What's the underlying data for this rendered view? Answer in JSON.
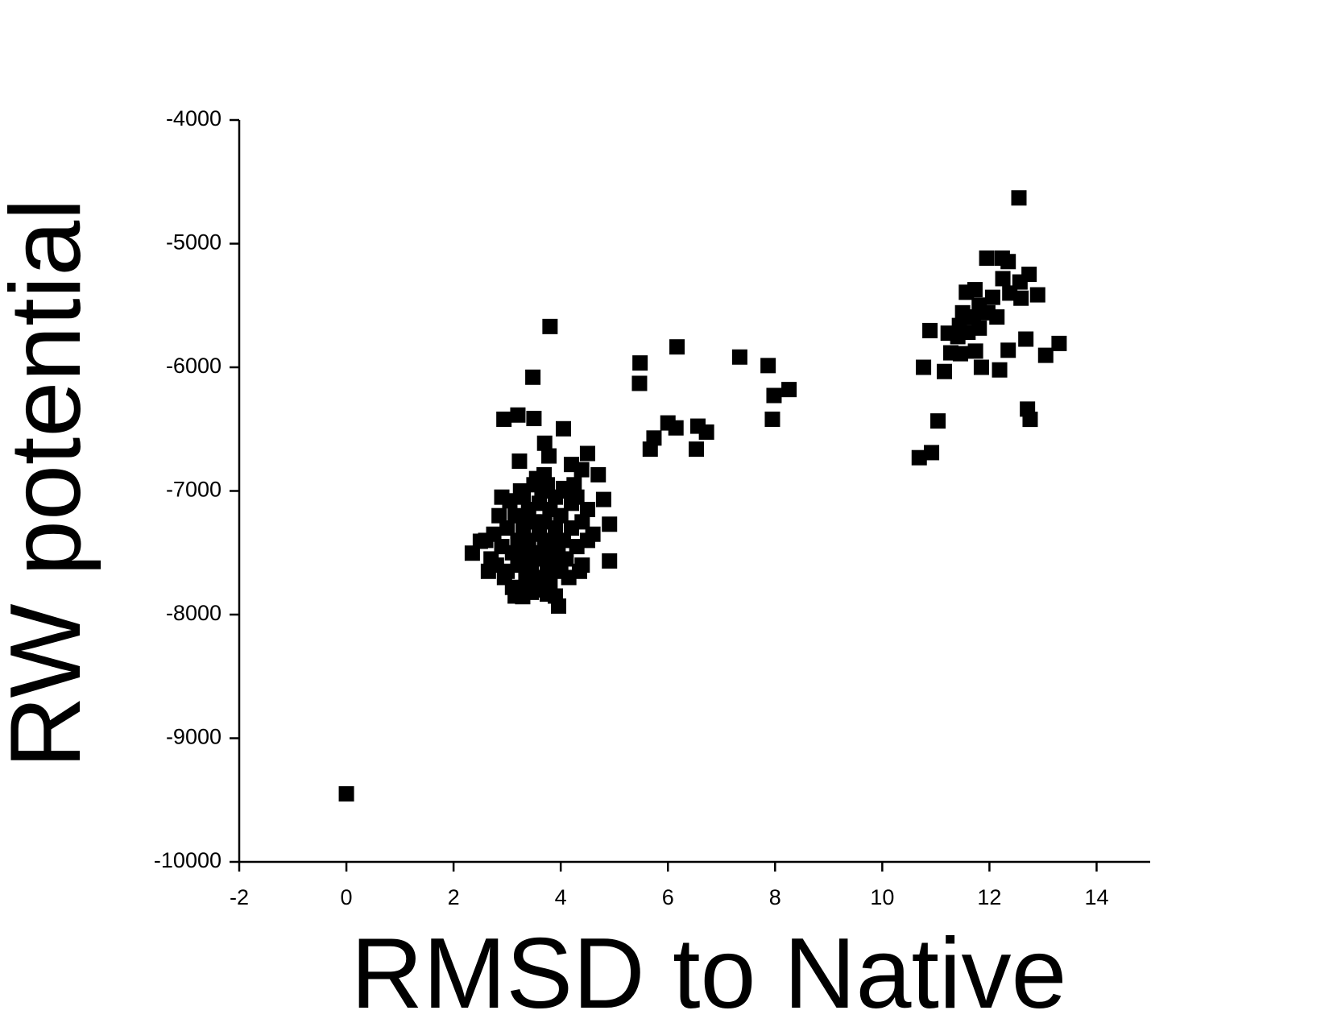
{
  "chart_data": {
    "type": "scatter",
    "xlabel": "RMSD to Native",
    "ylabel": "RW potential",
    "xlim": [
      -2,
      15
    ],
    "ylim": [
      -10000,
      -4000
    ],
    "xticks": [
      -2,
      0,
      2,
      4,
      6,
      8,
      10,
      12,
      14
    ],
    "yticks": [
      -4000,
      -5000,
      -6000,
      -7000,
      -8000,
      -9000,
      -10000
    ],
    "color": "#000000",
    "x": [
      0,
      12.55,
      3.8,
      3.48,
      5.48,
      5.47,
      6.17,
      7.34,
      7.87,
      7.98,
      8.26,
      7.95,
      6.0,
      6.15,
      6.56,
      6.72,
      5.74,
      5.67,
      6.53,
      2.94,
      3.2,
      3.5,
      4.05,
      3.7,
      3.78,
      3.23,
      4.5,
      4.2,
      4.39,
      4.7,
      3.69,
      4.8,
      4.91,
      4.91,
      2.35,
      2.5,
      3.96,
      3.75,
      3.29,
      10.69,
      10.92,
      11.04,
      10.77,
      11.16,
      10.89,
      11.28,
      11.46,
      11.74,
      11.85,
      12.19,
      12.35,
      12.68,
      13.05,
      13.3,
      12.9,
      12.71,
      12.76,
      11.95,
      12.24,
      12.35,
      12.74,
      12.57,
      12.25,
      12.38,
      12.59,
      12.06,
      11.73,
      11.57,
      11.81,
      11.97,
      12.14,
      11.7,
      11.5,
      11.44,
      11.6,
      11.23,
      11.41,
      11.81,
      2.7,
      2.8,
      2.9,
      2.95,
      3.0,
      3.0,
      3.05,
      3.1,
      3.1,
      3.15,
      3.2,
      3.2,
      3.25,
      3.3,
      3.3,
      3.35,
      3.35,
      3.4,
      3.4,
      3.45,
      3.45,
      3.5,
      3.5,
      3.5,
      3.55,
      3.6,
      3.6,
      3.65,
      3.65,
      3.7,
      3.7,
      3.75,
      3.8,
      3.8,
      3.85,
      3.9,
      3.9,
      3.95,
      4.0,
      4.0,
      4.05,
      4.1,
      4.1,
      4.2,
      4.2,
      4.3,
      4.3,
      4.35,
      4.4,
      4.5,
      4.5,
      4.6,
      2.6,
      2.75,
      2.85,
      3.6,
      3.8,
      4.15,
      4.4,
      2.9,
      3.25,
      3.55,
      3.75,
      4.25,
      2.65,
      3.15,
      3.4,
      3.9,
      4.05
    ],
    "values": [
      -9450,
      -4630,
      -5670,
      -6080,
      -5965,
      -6130,
      -5835,
      -5917,
      -5986,
      -6228,
      -6180,
      -6420,
      -6450,
      -6490,
      -6476,
      -6524,
      -6572,
      -6662,
      -6662,
      -6420,
      -6386,
      -6414,
      -6497,
      -6614,
      -6717,
      -6759,
      -6697,
      -6786,
      -6828,
      -6869,
      -6869,
      -7069,
      -7269,
      -7566,
      -7503,
      -7407,
      -7931,
      -7834,
      -7855,
      -6731,
      -6690,
      -6434,
      -6000,
      -6034,
      -5703,
      -5883,
      -5890,
      -5869,
      -6000,
      -6021,
      -5862,
      -5772,
      -5903,
      -5807,
      -5414,
      -6338,
      -6421,
      -5117,
      -5117,
      -5145,
      -5248,
      -5310,
      -5283,
      -5400,
      -5441,
      -5434,
      -5372,
      -5393,
      -5497,
      -5559,
      -5593,
      -5593,
      -5559,
      -5662,
      -5717,
      -5724,
      -5752,
      -5683,
      -7550,
      -7600,
      -7450,
      -7700,
      -7300,
      -7650,
      -7080,
      -7500,
      -7780,
      -7200,
      -7400,
      -7600,
      -7800,
      -7050,
      -7300,
      -7500,
      -7700,
      -7150,
      -7400,
      -7600,
      -7820,
      -6950,
      -7250,
      -7500,
      -7700,
      -7100,
      -7350,
      -7550,
      -7000,
      -7250,
      -7450,
      -7650,
      -7150,
      -7400,
      -7550,
      -7050,
      -7300,
      -7500,
      -7200,
      -7650,
      -7400,
      -7000,
      -7550,
      -7300,
      -7100,
      -7450,
      -7050,
      -7650,
      -7250,
      -7150,
      -7400,
      -7350,
      -7400,
      -7350,
      -7200,
      -7800,
      -7750,
      -7700,
      -7600,
      -7050,
      -7000,
      -6900,
      -6950,
      -6950,
      -7650,
      -7850,
      -7250,
      -7850,
      -6980
    ]
  }
}
